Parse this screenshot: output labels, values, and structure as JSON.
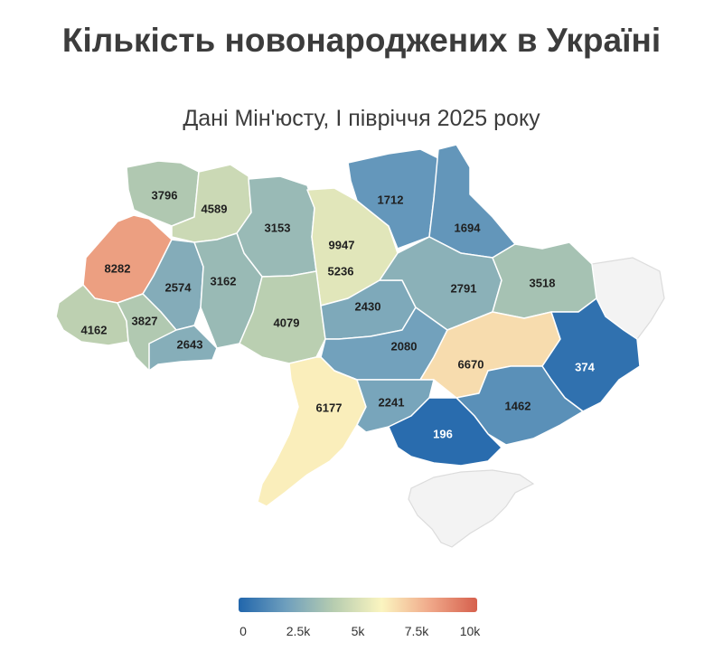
{
  "title": "Кількість новонароджених в Україні",
  "subtitle": "Дані Мін'юсту, I півріччя 2025 року",
  "legend": {
    "min": 0,
    "max": 10000,
    "ticks": [
      "0",
      "2.5k",
      "5k",
      "7.5k",
      "10k"
    ],
    "colors": [
      "#2166ac",
      "#6f9fbd",
      "#b7cdb0",
      "#fbf5c0",
      "#f0a98a",
      "#d6604d"
    ]
  },
  "regions": [
    {
      "label": "3796",
      "value": 3796
    },
    {
      "label": "4589",
      "value": 4589
    },
    {
      "label": "3153",
      "value": 3153
    },
    {
      "label": "9947",
      "value": 9947
    },
    {
      "label": "5236",
      "value": 5236
    },
    {
      "label": "1712",
      "value": 1712
    },
    {
      "label": "1694",
      "value": 1694
    },
    {
      "label": "8282",
      "value": 8282
    },
    {
      "label": "2574",
      "value": 2574
    },
    {
      "label": "3162",
      "value": 3162
    },
    {
      "label": "4079",
      "value": 4079
    },
    {
      "label": "2430",
      "value": 2430
    },
    {
      "label": "2791",
      "value": 2791
    },
    {
      "label": "3518",
      "value": 3518
    },
    {
      "label": "4162",
      "value": 4162
    },
    {
      "label": "3827",
      "value": 3827
    },
    {
      "label": "2643",
      "value": 2643
    },
    {
      "label": "2080",
      "value": 2080
    },
    {
      "label": "6670",
      "value": 6670
    },
    {
      "label": "374",
      "value": 374
    },
    {
      "label": "6177",
      "value": 6177
    },
    {
      "label": "2241",
      "value": 2241
    },
    {
      "label": "1462",
      "value": 1462
    },
    {
      "label": "196",
      "value": 196
    }
  ]
}
